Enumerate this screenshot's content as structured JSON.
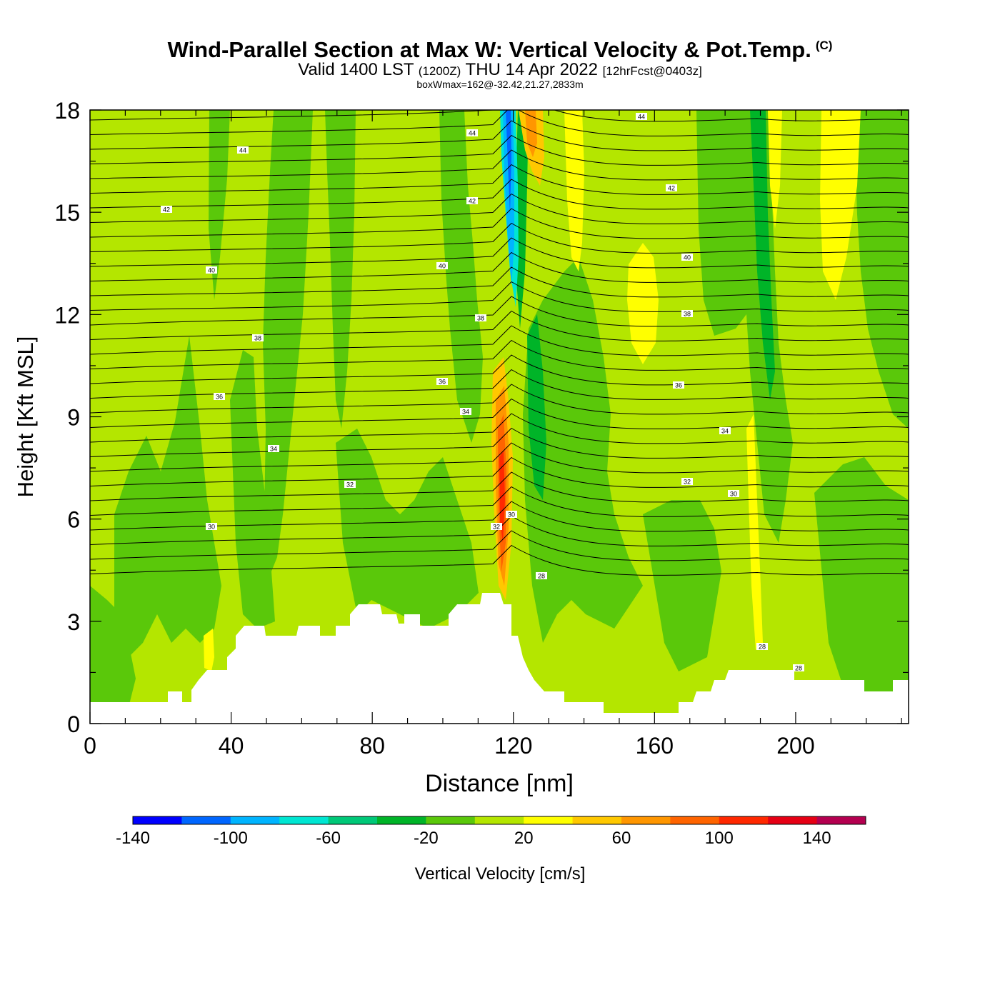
{
  "title": "Wind-Parallel Section at Max W: Vertical Velocity & Pot.Temp.",
  "copyright_mark": "(C)",
  "subtitle": {
    "prefix": "Valid 1400 LST",
    "utc": "(1200Z)",
    "date": "THU 14 Apr 2022",
    "forecast": "[12hrFcst@0403z]"
  },
  "info_line": "boxWmax=162@-32.42,21.27,2833m",
  "chart_data": {
    "type": "heatmap",
    "xlabel": "Distance [nm]",
    "ylabel": "Height [Kft MSL]",
    "xlim": [
      0,
      232
    ],
    "ylim": [
      0,
      18
    ],
    "x_ticks": [
      "0",
      "40",
      "80",
      "120",
      "160",
      "200"
    ],
    "y_ticks": [
      "0",
      "3",
      "6",
      "9",
      "12",
      "15",
      "18"
    ],
    "colorbar": {
      "label": "Vertical Velocity [cm/s]",
      "tick_labels": [
        "-140",
        "-100",
        "-60",
        "-20",
        "20",
        "60",
        "100",
        "140"
      ],
      "levels": [
        -140,
        -120,
        -100,
        -80,
        -60,
        -40,
        -20,
        0,
        20,
        40,
        60,
        80,
        100,
        120,
        140,
        160
      ],
      "colors": [
        "#0000ff",
        "#0066ff",
        "#00b4ff",
        "#00e6d2",
        "#00c878",
        "#00b428",
        "#5ac80a",
        "#b4e600",
        "#ffff00",
        "#ffc800",
        "#ff9600",
        "#ff6400",
        "#ff2800",
        "#e60014",
        "#b40050"
      ]
    },
    "background_value_color": "#b4e600",
    "theta_contour_labels": [
      "44",
      "42",
      "40",
      "38",
      "36",
      "34",
      "32",
      "30",
      "28"
    ],
    "max_updraft": {
      "value": 162,
      "x": 117,
      "height": 7
    }
  }
}
